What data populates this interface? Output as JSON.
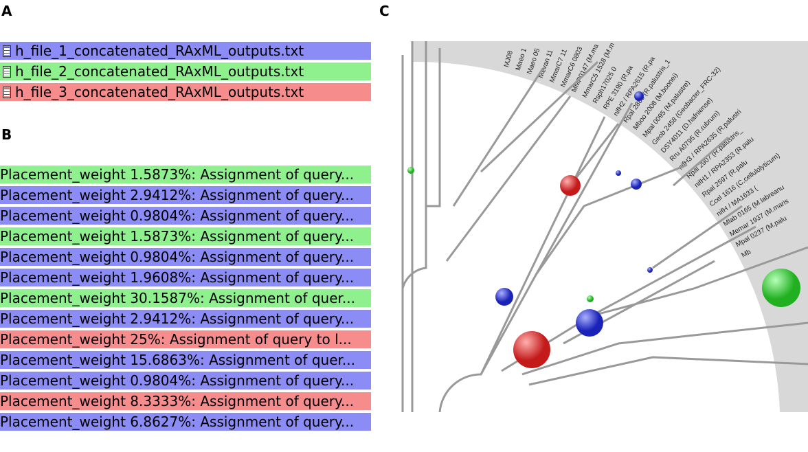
{
  "panels": {
    "a": "A",
    "b": "B",
    "c": "C"
  },
  "files": [
    {
      "name": "h_file_1_concatenated_RAxML_outputs.txt",
      "color": "#8c8cf6"
    },
    {
      "name": "h_file_2_concatenated_RAxML_outputs.txt",
      "color": "#8ef18e"
    },
    {
      "name": "h_file_3_concatenated_RAxML_outputs.txt",
      "color": "#f68c8c"
    }
  ],
  "placements": [
    {
      "text": "Placement_weight 1.5873%: Assignment of query...",
      "color": "#8ef18e"
    },
    {
      "text": "Placement_weight 2.9412%: Assignment of query...",
      "color": "#8c8cf6"
    },
    {
      "text": "Placement_weight 0.9804%: Assignment of query...",
      "color": "#8c8cf6"
    },
    {
      "text": "Placement_weight 1.5873%: Assignment of query...",
      "color": "#8ef18e"
    },
    {
      "text": "Placement_weight 0.9804%: Assignment of query...",
      "color": "#8c8cf6"
    },
    {
      "text": "Placement_weight 1.9608%: Assignment of query...",
      "color": "#8c8cf6"
    },
    {
      "text": "Placement_weight 30.1587%: Assignment of quer...",
      "color": "#8ef18e"
    },
    {
      "text": "Placement_weight 2.9412%: Assignment of query...",
      "color": "#8c8cf6"
    },
    {
      "text": "Placement_weight 25%: Assignment of query to  l...",
      "color": "#f68c8c"
    },
    {
      "text": "Placement_weight 15.6863%: Assignment of quer...",
      "color": "#8c8cf6"
    },
    {
      "text": "Placement_weight 0.9804%: Assignment of query...",
      "color": "#8c8cf6"
    },
    {
      "text": "Placement_weight 8.3333%: Assignment of query...",
      "color": "#f68c8c"
    },
    {
      "text": "Placement_weight 6.8627%: Assignment of query...",
      "color": "#8c8cf6"
    }
  ],
  "tree_labels": [
    "MJ08",
    "Maeo 1",
    "Maeo 05",
    "Mevan 11",
    "MmarC7 11",
    "MmarC6 0803",
    "MMP0147 (M.ma",
    "MmarC5 1528 (M.m",
    "Rsph17025 0",
    "RPE 3190 (R.pa",
    "nifH2 / RPA2615 (R.pa",
    "Rpal 2886 (R.palustris_1",
    "Mboo 2008 (M.boonei)",
    "Mpal 0095 (M.palustre)",
    "Geob 2458 (Geobacter_FRC-32)",
    "DSY4011 (D.hafniense)",
    "Rru A0795 (R.rubrum)",
    "nifH3 / RPA2635 (R.palustri",
    "Rpal 2907 (R.palustris_",
    "nifH1 / RPA2353 (R.palu",
    "Rpal 2597 (R.palu",
    "Ccel 1616 (C.cellulolyticum)",
    "nifH / MA1633 (",
    "Mlab 0165 (M.labreanu",
    "Memar 1937 (M.maris",
    "Mpal 0237 (M.palu",
    "Mb"
  ]
}
